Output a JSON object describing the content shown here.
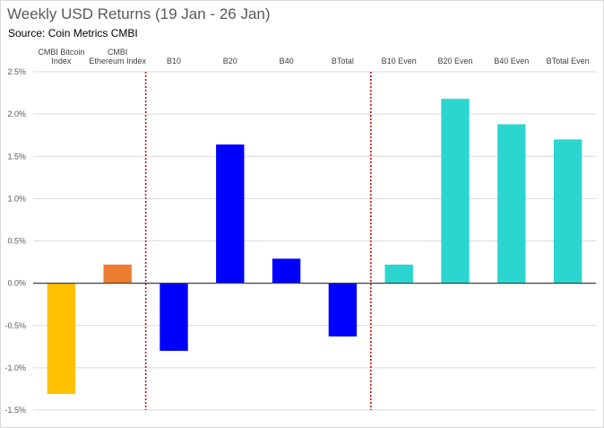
{
  "chart_data": {
    "type": "bar",
    "title": "Weekly USD Returns (19 Jan - 26 Jan)",
    "subtitle": "Source: Coin Metrics CMBI",
    "categories": [
      [
        "CMBI Bitcoin",
        "Index"
      ],
      [
        "CMBI",
        "Ethereum Index"
      ],
      [
        "B10"
      ],
      [
        "B20"
      ],
      [
        "B40"
      ],
      [
        "BTotal"
      ],
      [
        "B10 Even"
      ],
      [
        "B20 Even"
      ],
      [
        "B40 Even"
      ],
      [
        "BTotal Even"
      ]
    ],
    "values": [
      -1.31,
      0.22,
      -0.8,
      1.64,
      0.29,
      -0.63,
      0.22,
      2.18,
      1.88,
      1.7
    ],
    "bar_colors": [
      "#ffc000",
      "#ed7d31",
      "#0000ff",
      "#0000ff",
      "#0000ff",
      "#0000ff",
      "#2cd6d0",
      "#2cd6d0",
      "#2cd6d0",
      "#2cd6d0"
    ],
    "ylim": [
      -1.5,
      2.5
    ],
    "yticks": [
      2.5,
      2.0,
      1.5,
      1.0,
      0.5,
      0.0,
      -0.5,
      -1.0,
      -1.5
    ],
    "ytick_labels": [
      "2.5%",
      "2.0%",
      "1.5%",
      "1.0%",
      "0.5%",
      "0.0%",
      "-0.5%",
      "-1.0%",
      "-1.5%"
    ],
    "separators_after_index": [
      1,
      5
    ],
    "separator_color": "#c00000",
    "grid": true,
    "xlabel": "",
    "ylabel": ""
  }
}
